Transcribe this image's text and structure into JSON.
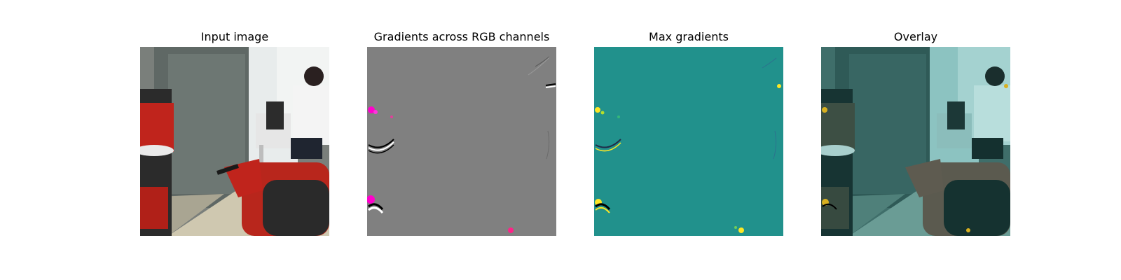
{
  "figure": {
    "panels": [
      {
        "title": "Input image"
      },
      {
        "title": "Gradients across RGB channels"
      },
      {
        "title": "Max gradients"
      },
      {
        "title": "Overlay"
      }
    ]
  },
  "colors": {
    "background": "#ffffff",
    "gradient_gray": "#808080",
    "max_gradient_teal": "#21918c",
    "highlight_yellow": "#fde725",
    "highlight_magenta": "#ff00cc",
    "robot_red": "#c0241c"
  }
}
